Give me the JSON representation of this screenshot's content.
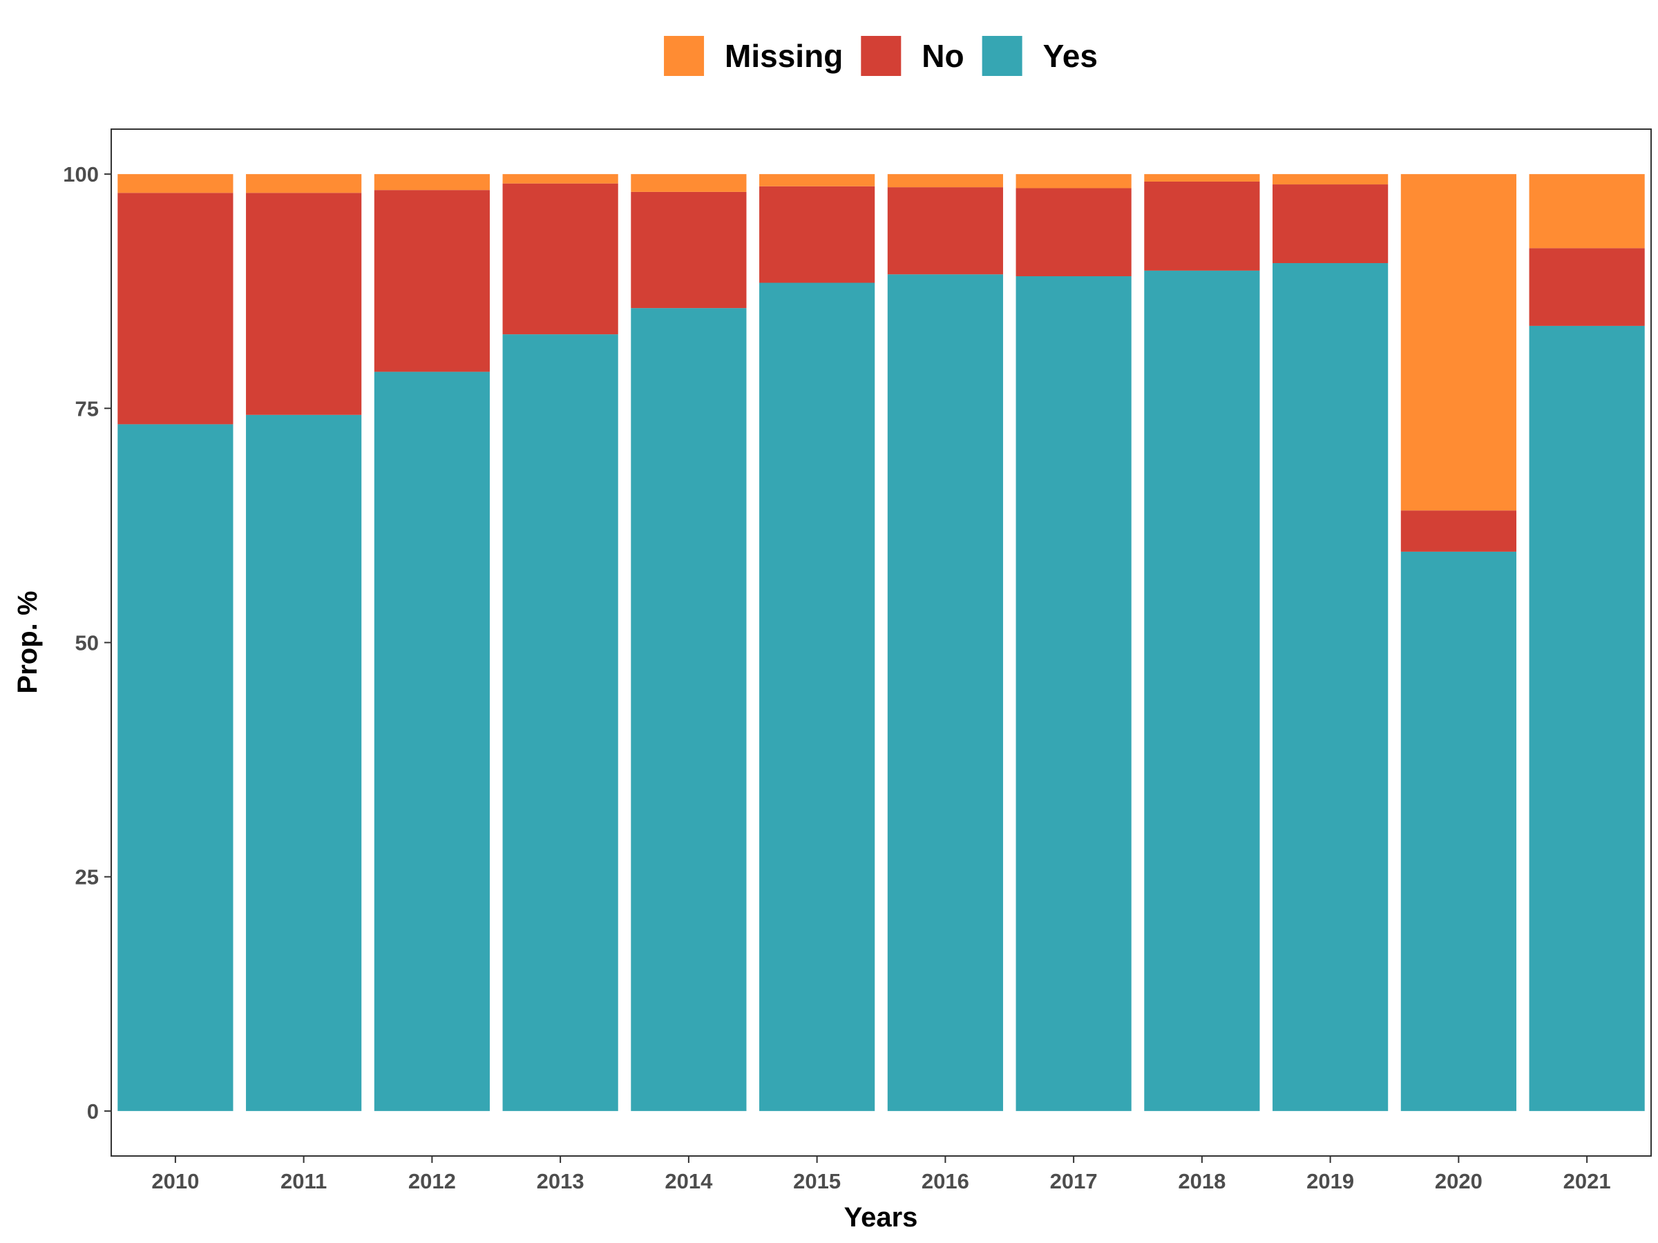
{
  "chart_data": {
    "type": "bar",
    "stacked": true,
    "categories": [
      "2010",
      "2011",
      "2012",
      "2013",
      "2014",
      "2015",
      "2016",
      "2017",
      "2018",
      "2019",
      "2020",
      "2021"
    ],
    "series": [
      {
        "name": "Yes",
        "color": "#36A6B3",
        "values": [
          73.3,
          74.3,
          78.9,
          82.9,
          85.7,
          88.4,
          89.3,
          89.1,
          89.7,
          90.5,
          59.7,
          83.8
        ]
      },
      {
        "name": "No",
        "color": "#D34035",
        "values": [
          24.7,
          23.7,
          19.4,
          16.1,
          12.4,
          10.3,
          9.3,
          9.4,
          9.5,
          8.4,
          4.4,
          8.3
        ]
      },
      {
        "name": "Missing",
        "color": "#FF8C33",
        "values": [
          2.0,
          2.0,
          1.7,
          1.0,
          1.9,
          1.3,
          1.4,
          1.5,
          0.8,
          1.1,
          35.9,
          7.9
        ]
      }
    ],
    "legend_order": [
      "Missing",
      "No",
      "Yes"
    ],
    "legend_position": "top",
    "xlabel": "Years",
    "ylabel": "Prop. %",
    "yticks": [
      0,
      25,
      50,
      75,
      100
    ],
    "ylim": [
      -4.8,
      104.8
    ],
    "grid": false
  }
}
